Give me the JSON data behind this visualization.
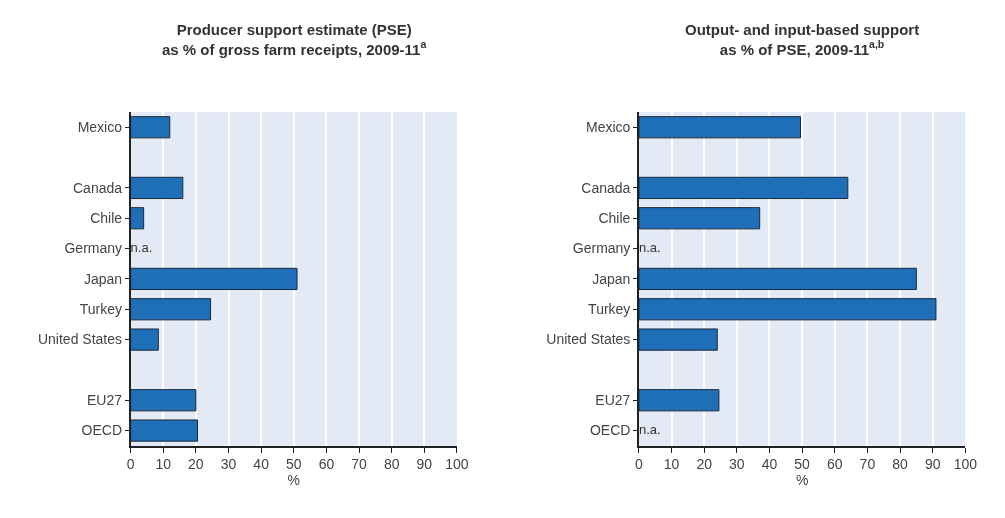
{
  "chart_data": [
    {
      "type": "bar",
      "orientation": "horizontal",
      "title": "Producer support estimate (PSE)\nas % of gross farm receipts, 2009-11$^{a}$",
      "xlabel": "%",
      "categories": [
        "Mexico",
        null,
        "Canada",
        "Chile",
        "Germany",
        "Japan",
        "Turkey",
        "United States",
        null,
        "EU27",
        "OECD"
      ],
      "values": [
        12,
        null,
        16,
        4,
        null,
        51,
        24.5,
        8.5,
        null,
        20,
        20.5
      ],
      "value_labels": [
        null,
        null,
        null,
        null,
        "n.a.",
        null,
        null,
        null,
        null,
        null,
        null
      ],
      "color": "#1f6fb8",
      "xlim": [
        0,
        100
      ],
      "xticks": [
        0,
        10,
        20,
        30,
        40,
        50,
        60,
        70,
        80,
        90,
        100
      ],
      "grid": "x"
    },
    {
      "type": "bar",
      "orientation": "horizontal",
      "title": "Output- and input-based support\nas % of PSE, 2009-11$^{a,b}$",
      "xlabel": "%",
      "categories": [
        "Mexico",
        null,
        "Canada",
        "Chile",
        "Germany",
        "Japan",
        "Turkey",
        "United States",
        null,
        "EU27",
        "OECD"
      ],
      "values": [
        49.5,
        null,
        64,
        37,
        null,
        85,
        91,
        24,
        null,
        24.5,
        null
      ],
      "value_labels": [
        null,
        null,
        null,
        null,
        "n.a.",
        null,
        null,
        null,
        null,
        null,
        "n.a."
      ],
      "color": "#1f6fb8",
      "xlim": [
        0,
        100
      ],
      "xticks": [
        0,
        10,
        20,
        30,
        40,
        50,
        60,
        70,
        80,
        90,
        100
      ],
      "grid": "x"
    }
  ]
}
